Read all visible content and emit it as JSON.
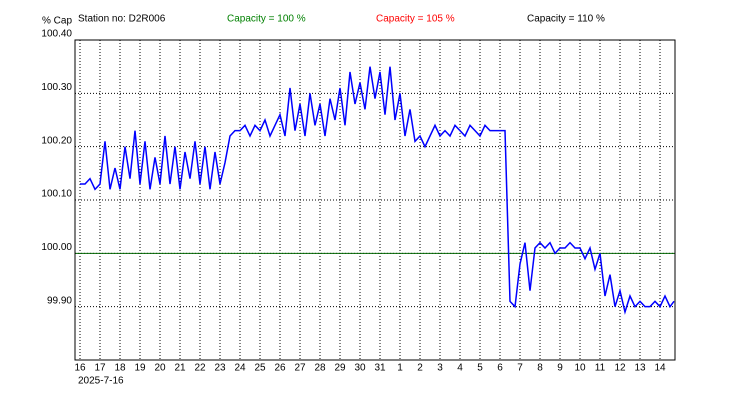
{
  "chart_data": {
    "type": "line",
    "y_axis_label": "% Cap",
    "station": "Station no: D2R006",
    "capacity_labels": [
      {
        "text": "Capacity = 100 %",
        "color": "#008000"
      },
      {
        "text": "Capacity = 105 %",
        "color": "#ff0000"
      },
      {
        "text": "Capacity = 110 %",
        "color": "#000000"
      }
    ],
    "start_date": "2025-7-16",
    "reference_line": {
      "value": 100.0,
      "color": "#006400"
    },
    "grid": true,
    "xlim": [
      -0.25,
      29.75
    ],
    "ylim": [
      99.8,
      100.4
    ],
    "yticks": [
      {
        "value": 99.9,
        "label": "99.90"
      },
      {
        "value": 100.0,
        "label": "100.00"
      },
      {
        "value": 100.1,
        "label": "100.10"
      },
      {
        "value": 100.2,
        "label": "100.20"
      },
      {
        "value": 100.3,
        "label": "100.30"
      },
      {
        "value": 100.4,
        "label": "100.40"
      }
    ],
    "xticks": [
      {
        "value": 0,
        "label": "16"
      },
      {
        "value": 1,
        "label": "17"
      },
      {
        "value": 2,
        "label": "18"
      },
      {
        "value": 3,
        "label": "19"
      },
      {
        "value": 4,
        "label": "20"
      },
      {
        "value": 5,
        "label": "21"
      },
      {
        "value": 6,
        "label": "22"
      },
      {
        "value": 7,
        "label": "23"
      },
      {
        "value": 8,
        "label": "24"
      },
      {
        "value": 9,
        "label": "25"
      },
      {
        "value": 10,
        "label": "26"
      },
      {
        "value": 11,
        "label": "27"
      },
      {
        "value": 12,
        "label": "28"
      },
      {
        "value": 13,
        "label": "29"
      },
      {
        "value": 14,
        "label": "30"
      },
      {
        "value": 15,
        "label": "31"
      },
      {
        "value": 16,
        "label": "1"
      },
      {
        "value": 17,
        "label": "2"
      },
      {
        "value": 18,
        "label": "3"
      },
      {
        "value": 19,
        "label": "4"
      },
      {
        "value": 20,
        "label": "5"
      },
      {
        "value": 21,
        "label": "6"
      },
      {
        "value": 22,
        "label": "7"
      },
      {
        "value": 23,
        "label": "8"
      },
      {
        "value": 24,
        "label": "9"
      },
      {
        "value": 25,
        "label": "10"
      },
      {
        "value": 26,
        "label": "11"
      },
      {
        "value": 27,
        "label": "12"
      },
      {
        "value": 28,
        "label": "13"
      },
      {
        "value": 29,
        "label": "14"
      }
    ],
    "series": [
      {
        "color": "#0000ff",
        "x": [
          0,
          0.25,
          0.5,
          0.75,
          1,
          1.25,
          1.5,
          1.75,
          2,
          2.25,
          2.5,
          2.75,
          3,
          3.25,
          3.5,
          3.75,
          4,
          4.25,
          4.5,
          4.75,
          5,
          5.25,
          5.5,
          5.75,
          6,
          6.25,
          6.5,
          6.75,
          7,
          7.25,
          7.5,
          7.75,
          8,
          8.25,
          8.5,
          8.75,
          9,
          9.25,
          9.5,
          9.75,
          10,
          10.25,
          10.5,
          10.75,
          11,
          11.25,
          11.5,
          11.75,
          12,
          12.25,
          12.5,
          12.75,
          13,
          13.25,
          13.5,
          13.75,
          14,
          14.25,
          14.5,
          14.75,
          15,
          15.25,
          15.5,
          15.75,
          16,
          16.25,
          16.5,
          16.75,
          17,
          17.25,
          17.5,
          17.75,
          18,
          18.25,
          18.5,
          18.75,
          19,
          19.25,
          19.5,
          19.75,
          20,
          20.25,
          20.5,
          20.75,
          21,
          21.25,
          21.5,
          21.75,
          22,
          22.25,
          22.5,
          22.75,
          23,
          23.25,
          23.5,
          23.75,
          24,
          24.25,
          24.5,
          24.75,
          25,
          25.25,
          25.5,
          25.75,
          26,
          26.25,
          26.5,
          26.75,
          27,
          27.25,
          27.5,
          27.75,
          28,
          28.25,
          28.5,
          28.75,
          29,
          29.25,
          29.5,
          29.7
        ],
        "values": [
          100.13,
          100.13,
          100.14,
          100.12,
          100.13,
          100.21,
          100.12,
          100.16,
          100.12,
          100.2,
          100.14,
          100.23,
          100.13,
          100.21,
          100.12,
          100.18,
          100.13,
          100.22,
          100.13,
          100.2,
          100.12,
          100.19,
          100.14,
          100.21,
          100.13,
          100.2,
          100.12,
          100.19,
          100.13,
          100.17,
          100.22,
          100.23,
          100.23,
          100.24,
          100.22,
          100.24,
          100.23,
          100.25,
          100.22,
          100.24,
          100.26,
          100.22,
          100.31,
          100.23,
          100.28,
          100.22,
          100.3,
          100.24,
          100.28,
          100.22,
          100.29,
          100.25,
          100.31,
          100.24,
          100.34,
          100.28,
          100.32,
          100.27,
          100.35,
          100.29,
          100.34,
          100.26,
          100.35,
          100.25,
          100.3,
          100.22,
          100.27,
          100.21,
          100.22,
          100.2,
          100.22,
          100.24,
          100.22,
          100.23,
          100.22,
          100.24,
          100.23,
          100.22,
          100.24,
          100.23,
          100.22,
          100.24,
          100.23,
          100.23,
          100.23,
          100.23,
          99.91,
          99.9,
          99.98,
          100.02,
          99.93,
          100.01,
          100.02,
          100.01,
          100.02,
          100.0,
          100.01,
          100.01,
          100.02,
          100.01,
          100.01,
          99.99,
          100.01,
          99.97,
          100.0,
          99.92,
          99.96,
          99.9,
          99.93,
          99.89,
          99.92,
          99.9,
          99.91,
          99.9,
          99.9,
          99.91,
          99.9,
          99.92,
          99.9,
          99.91
        ]
      }
    ]
  }
}
